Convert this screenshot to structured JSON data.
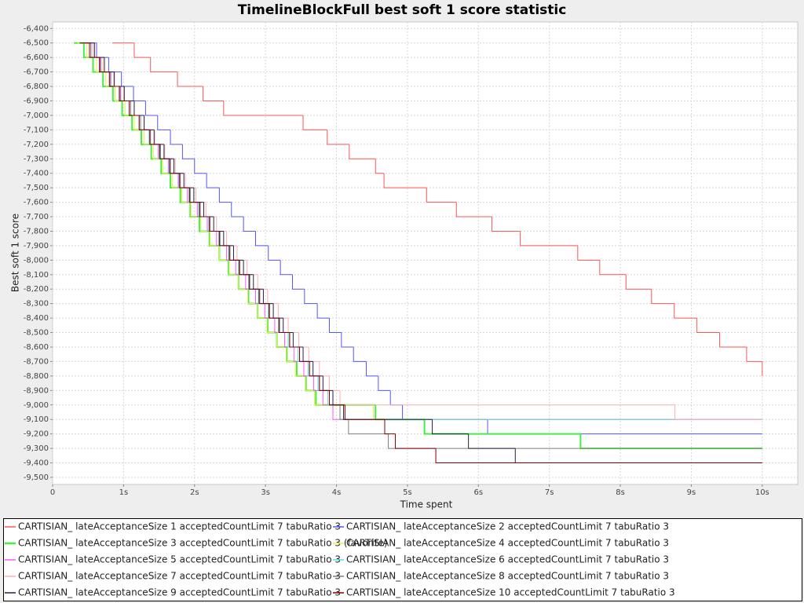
{
  "chart_data": {
    "type": "step",
    "title": "TimelineBlockFull best soft 1 score statistic",
    "x_label": "Time spent",
    "y_label": "Best soft 1 score",
    "xlim": [
      0,
      10.5
    ],
    "ylim": [
      -9549,
      -6355
    ],
    "grid": true,
    "xticks": [
      0,
      {
        "value": 1,
        "label": "1s"
      },
      {
        "value": 2,
        "label": "2s"
      },
      {
        "value": 3,
        "label": "3s"
      },
      {
        "value": 4,
        "label": "4s"
      },
      {
        "value": 5,
        "label": "5s"
      },
      {
        "value": 6,
        "label": "6s"
      },
      {
        "value": 7,
        "label": "7s"
      },
      {
        "value": 8,
        "label": "8s"
      },
      {
        "value": 9,
        "label": "9s"
      },
      {
        "value": 10,
        "label": "10s"
      }
    ],
    "yticks": [
      {
        "value": -6400,
        "label": "-6,400"
      },
      {
        "value": -6500,
        "label": "-6,500"
      },
      {
        "value": -6600,
        "label": "-6,600"
      },
      {
        "value": -6700,
        "label": "-6,700"
      },
      {
        "value": -6800,
        "label": "-6,800"
      },
      {
        "value": -6900,
        "label": "-6,900"
      },
      {
        "value": -7000,
        "label": "-7,000"
      },
      {
        "value": -7100,
        "label": "-7,100"
      },
      {
        "value": -7200,
        "label": "-7,200"
      },
      {
        "value": -7300,
        "label": "-7,300"
      },
      {
        "value": -7400,
        "label": "-7,400"
      },
      {
        "value": -7500,
        "label": "-7,500"
      },
      {
        "value": -7600,
        "label": "-7,600"
      },
      {
        "value": -7700,
        "label": "-7,700"
      },
      {
        "value": -7800,
        "label": "-7,800"
      },
      {
        "value": -7900,
        "label": "-7,900"
      },
      {
        "value": -8000,
        "label": "-8,000"
      },
      {
        "value": -8100,
        "label": "-8,100"
      },
      {
        "value": -8200,
        "label": "-8,200"
      },
      {
        "value": -8300,
        "label": "-8,300"
      },
      {
        "value": -8400,
        "label": "-8,400"
      },
      {
        "value": -8500,
        "label": "-8,500"
      },
      {
        "value": -8600,
        "label": "-8,600"
      },
      {
        "value": -8700,
        "label": "-8,700"
      },
      {
        "value": -8800,
        "label": "-8,800"
      },
      {
        "value": -8900,
        "label": "-8,900"
      },
      {
        "value": -9000,
        "label": "-9,000"
      },
      {
        "value": -9100,
        "label": "-9,100"
      },
      {
        "value": -9200,
        "label": "-9,200"
      },
      {
        "value": -9300,
        "label": "-9,300"
      },
      {
        "value": -9400,
        "label": "-9,400"
      },
      {
        "value": -9500,
        "label": "-9,500"
      }
    ],
    "series": [
      {
        "name": "CARTISIAN_ lateAcceptanceSize 1 acceptedCountLimit 7 tabuRatio 3",
        "color": "#ff5555",
        "x": [
          0.84,
          1.15,
          1.38,
          1.76,
          2.12,
          2.41,
          3.53,
          3.87,
          4.18,
          4.55,
          4.67,
          5.27,
          5.69,
          6.19,
          6.59,
          7.4,
          7.71,
          8.08,
          8.44,
          8.76,
          9.08,
          9.4,
          9.78,
          10
        ],
        "values": [
          -6500,
          -6600,
          -6700,
          -6800,
          -6900,
          -7000,
          -7100,
          -7200,
          -7300,
          -7400,
          -7500,
          -7600,
          -7700,
          -7800,
          -7900,
          -8000,
          -8100,
          -8200,
          -8300,
          -8400,
          -8500,
          -8600,
          -8700,
          -8800
        ]
      },
      {
        "name": "CARTISIAN_ lateAcceptanceSize 2 acceptedCountLimit 7 tabuRatio 3",
        "color": "#5555ff",
        "x": [
          0.45,
          0.62,
          0.79,
          0.97,
          1.14,
          1.31,
          1.48,
          1.66,
          1.83,
          2.0,
          2.17,
          2.35,
          2.52,
          2.69,
          2.86,
          3.04,
          3.21,
          3.38,
          3.55,
          3.73,
          3.9,
          4.07,
          4.24,
          4.42,
          4.59,
          4.76,
          4.93,
          6.13,
          10
        ],
        "values": [
          -6500,
          -6600,
          -6700,
          -6800,
          -6900,
          -7000,
          -7100,
          -7200,
          -7300,
          -7400,
          -7500,
          -7600,
          -7700,
          -7800,
          -7900,
          -8000,
          -8100,
          -8200,
          -8300,
          -8400,
          -8500,
          -8600,
          -8700,
          -8800,
          -8900,
          -9000,
          -9100,
          -9200,
          -9200
        ]
      },
      {
        "name": "CARTISIAN_ lateAcceptanceSize 3 acceptedCountLimit 7 tabuRatio 3 (favorite)",
        "color": "#44ee44",
        "x": [
          0.3,
          0.44,
          0.57,
          0.71,
          0.85,
          0.98,
          1.12,
          1.25,
          1.39,
          1.53,
          1.66,
          1.8,
          1.94,
          2.07,
          2.21,
          2.35,
          2.48,
          2.62,
          2.76,
          2.89,
          3.03,
          3.16,
          3.3,
          3.44,
          3.57,
          3.71,
          4.55,
          5.24,
          7.44,
          10
        ],
        "values": [
          -6500,
          -6600,
          -6700,
          -6800,
          -6900,
          -7000,
          -7100,
          -7200,
          -7300,
          -7400,
          -7500,
          -7600,
          -7700,
          -7800,
          -7900,
          -8000,
          -8100,
          -8200,
          -8300,
          -8400,
          -8500,
          -8600,
          -8700,
          -8800,
          -8900,
          -9000,
          -9100,
          -9200,
          -9300,
          -9300
        ]
      },
      {
        "name": "CARTISIAN_ lateAcceptanceSize 4 acceptedCountLimit 7 tabuRatio 3",
        "color": "#eeee44",
        "x": [
          0.35,
          0.48,
          0.62,
          0.75,
          0.88,
          1.02,
          1.15,
          1.29,
          1.42,
          1.55,
          1.69,
          1.82,
          1.95,
          2.09,
          2.22,
          2.35,
          2.49,
          2.62,
          2.75,
          2.89,
          3.02,
          3.16,
          3.29,
          3.42,
          3.56,
          3.69,
          4.52,
          10
        ],
        "values": [
          -6500,
          -6600,
          -6700,
          -6800,
          -6900,
          -7000,
          -7100,
          -7200,
          -7300,
          -7400,
          -7500,
          -7600,
          -7700,
          -7800,
          -7900,
          -8000,
          -8100,
          -8200,
          -8300,
          -8400,
          -8500,
          -8600,
          -8700,
          -8800,
          -8900,
          -9000,
          -9100,
          -9100
        ]
      },
      {
        "name": "CARTISIAN_ lateAcceptanceSize 5 acceptedCountLimit 7 tabuRatio 3",
        "color": "#ff55ff",
        "x": [
          0.4,
          0.54,
          0.67,
          0.81,
          0.95,
          1.08,
          1.22,
          1.36,
          1.49,
          1.63,
          1.77,
          1.9,
          2.04,
          2.18,
          2.31,
          2.45,
          2.58,
          2.72,
          2.86,
          2.99,
          3.13,
          3.27,
          3.4,
          3.54,
          3.68,
          3.81,
          3.95,
          10
        ],
        "values": [
          -6500,
          -6600,
          -6700,
          -6800,
          -6900,
          -7000,
          -7100,
          -7200,
          -7300,
          -7400,
          -7500,
          -7600,
          -7700,
          -7800,
          -7900,
          -8000,
          -8100,
          -8200,
          -8300,
          -8400,
          -8500,
          -8600,
          -8700,
          -8800,
          -8900,
          -9000,
          -9100,
          -9100
        ]
      },
      {
        "name": "CARTISIAN_ lateAcceptanceSize 6 acceptedCountLimit 7 tabuRatio 3",
        "color": "#55dddd",
        "x": [
          0.38,
          0.52,
          0.66,
          0.8,
          0.94,
          1.08,
          1.22,
          1.36,
          1.5,
          1.64,
          1.78,
          1.92,
          2.06,
          2.2,
          2.34,
          2.48,
          2.62,
          2.76,
          2.9,
          3.04,
          3.18,
          3.32,
          3.46,
          3.6,
          3.74,
          3.88,
          4.05,
          10
        ],
        "values": [
          -6500,
          -6600,
          -6700,
          -6800,
          -6900,
          -7000,
          -7100,
          -7200,
          -7300,
          -7400,
          -7500,
          -7600,
          -7700,
          -7800,
          -7900,
          -8000,
          -8100,
          -8200,
          -8300,
          -8400,
          -8500,
          -8600,
          -8700,
          -8800,
          -8900,
          -9000,
          -9100,
          -9100
        ]
      },
      {
        "name": "CARTISIAN_ lateAcceptanceSize 7 acceptedCountLimit 7 tabuRatio 3",
        "color": "#ffafaf",
        "x": [
          0.42,
          0.57,
          0.71,
          0.86,
          1.0,
          1.15,
          1.29,
          1.44,
          1.58,
          1.73,
          1.87,
          2.02,
          2.16,
          2.31,
          2.45,
          2.6,
          2.74,
          2.89,
          3.03,
          3.18,
          3.32,
          3.47,
          3.61,
          3.76,
          3.9,
          4.05,
          8.77,
          10
        ],
        "values": [
          -6500,
          -6600,
          -6700,
          -6800,
          -6900,
          -7000,
          -7100,
          -7200,
          -7300,
          -7400,
          -7500,
          -7600,
          -7700,
          -7800,
          -7900,
          -8000,
          -8100,
          -8200,
          -8300,
          -8400,
          -8500,
          -8600,
          -8700,
          -8800,
          -8900,
          -9000,
          -9100,
          -9100
        ]
      },
      {
        "name": "CARTISIAN_ lateAcceptanceSize 8 acceptedCountLimit 7 tabuRatio 3",
        "color": "#808080",
        "x": [
          0.4,
          0.54,
          0.68,
          0.82,
          0.96,
          1.1,
          1.24,
          1.38,
          1.52,
          1.66,
          1.8,
          1.94,
          2.08,
          2.22,
          2.36,
          2.5,
          2.64,
          2.78,
          2.92,
          3.06,
          3.2,
          3.34,
          3.48,
          3.62,
          3.76,
          3.9,
          4.05,
          4.17,
          4.73,
          10
        ],
        "values": [
          -6500,
          -6600,
          -6700,
          -6800,
          -6900,
          -7000,
          -7100,
          -7200,
          -7300,
          -7400,
          -7500,
          -7600,
          -7700,
          -7800,
          -7900,
          -8000,
          -8100,
          -8200,
          -8300,
          -8400,
          -8500,
          -8600,
          -8700,
          -8800,
          -8900,
          -9000,
          -9100,
          -9200,
          -9300,
          -9300
        ]
      },
      {
        "name": "CARTISIAN_ lateAcceptanceSize 9 acceptedCountLimit 7 tabuRatio 3",
        "color": "#22224a",
        "x": [
          0.45,
          0.59,
          0.73,
          0.87,
          1.01,
          1.15,
          1.29,
          1.43,
          1.57,
          1.71,
          1.85,
          1.99,
          2.13,
          2.27,
          2.41,
          2.55,
          2.69,
          2.83,
          2.97,
          3.11,
          3.25,
          3.39,
          3.53,
          3.67,
          3.81,
          3.95,
          4.1,
          5.35,
          5.86,
          6.52,
          10
        ],
        "values": [
          -6500,
          -6600,
          -6700,
          -6800,
          -6900,
          -7000,
          -7100,
          -7200,
          -7300,
          -7400,
          -7500,
          -7600,
          -7700,
          -7800,
          -7900,
          -8000,
          -8100,
          -8200,
          -8300,
          -8400,
          -8500,
          -8600,
          -8700,
          -8800,
          -8900,
          -9000,
          -9100,
          -9200,
          -9300,
          -9400,
          -9400
        ]
      },
      {
        "name": "CARTISIAN_ lateAcceptanceSize 10 acceptedCountLimit 7 tabuRatio 3",
        "color": "#880000",
        "x": [
          0.38,
          0.52,
          0.66,
          0.8,
          0.94,
          1.08,
          1.22,
          1.37,
          1.51,
          1.65,
          1.79,
          1.93,
          2.07,
          2.21,
          2.35,
          2.49,
          2.63,
          2.77,
          2.91,
          3.05,
          3.19,
          3.34,
          3.48,
          3.62,
          3.76,
          3.9,
          4.12,
          4.68,
          4.83,
          5.4,
          10
        ],
        "values": [
          -6500,
          -6600,
          -6700,
          -6800,
          -6900,
          -7000,
          -7100,
          -7200,
          -7300,
          -7400,
          -7500,
          -7600,
          -7700,
          -7800,
          -7900,
          -8000,
          -8100,
          -8200,
          -8300,
          -8400,
          -8500,
          -8600,
          -8700,
          -8800,
          -8900,
          -9000,
          -9100,
          -9200,
          -9300,
          -9400,
          -9400
        ]
      }
    ]
  }
}
